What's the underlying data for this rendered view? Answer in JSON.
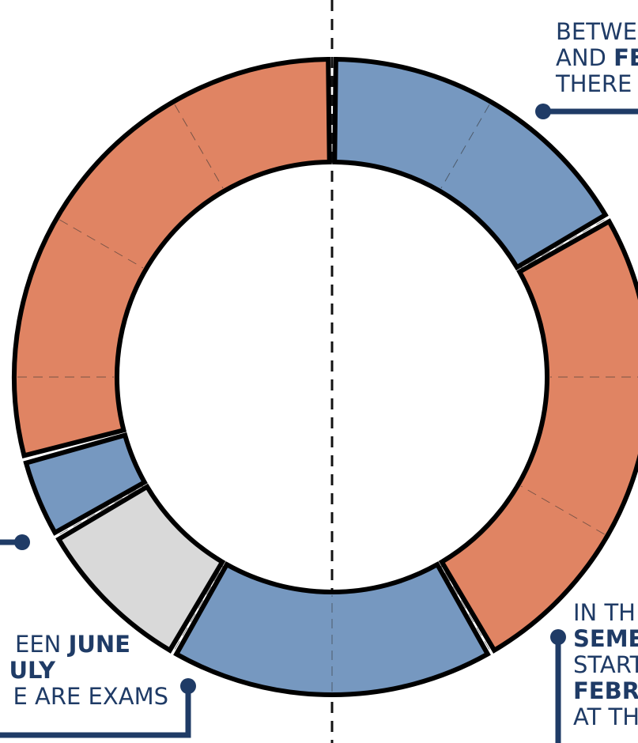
{
  "chart_data": {
    "type": "pie",
    "values": [
      2,
      3,
      2,
      1,
      0.5,
      3.5
    ],
    "colors": [
      "#7698c0",
      "#e08463",
      "#7698c0",
      "#d9d9d9",
      "#7698c0",
      "#e08463"
    ],
    "annotations": [
      {
        "lines": [
          [
            {
              "text": "BETWE"
            }
          ],
          [
            {
              "text": "AND "
            },
            {
              "text": "FE",
              "bold": true
            }
          ],
          [
            {
              "text": "THERE"
            }
          ]
        ]
      },
      {
        "lines": [
          [
            {
              "text": "IN TH"
            }
          ],
          [
            {
              "text": "SEME",
              "bold": true
            }
          ],
          [
            {
              "text": "START"
            }
          ],
          [
            {
              "text": "FEBR",
              "bold": true
            }
          ],
          [
            {
              "text": "AT TH"
            }
          ]
        ]
      },
      {
        "lines": [
          [
            {
              "text": "EEN "
            },
            {
              "text": "JUNE",
              "bold": true
            }
          ],
          [
            {
              "text": "ULY",
              "bold": true
            }
          ],
          [
            {
              "text": "E ARE EXAMS"
            }
          ]
        ]
      }
    ]
  }
}
